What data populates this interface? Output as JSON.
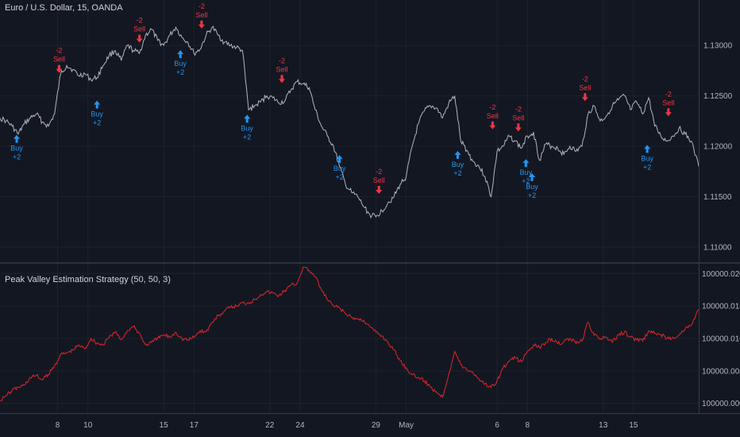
{
  "main_legend": "Euro / U.S. Dollar, 15, OANDA",
  "indicator_legend": "Peak Valley Estimation Strategy (50, 50, 3)",
  "colors": {
    "background": "#131722",
    "grid": "#1e222d",
    "axis_text": "#b2b5be",
    "price_line": "#b2b5be",
    "equity_line": "#e0262b",
    "buy": "#2196f3",
    "sell": "#f23645",
    "divider": "#363a45"
  },
  "chart_data": [
    {
      "type": "line",
      "title": "Euro / U.S. Dollar, 15, OANDA",
      "ylim": [
        1.1085,
        1.1345
      ],
      "y_ticks": [
        1.13,
        1.125,
        1.12,
        1.115,
        1.11
      ],
      "y_tick_labels": [
        "1.13000",
        "1.12500",
        "1.12000",
        "1.11500",
        "1.11000"
      ],
      "x_ticks": [
        {
          "label": "8",
          "day": 8
        },
        {
          "label": "10",
          "day": 10
        },
        {
          "label": "15",
          "day": 15
        },
        {
          "label": "17",
          "day": 17
        },
        {
          "label": "22",
          "day": 22
        },
        {
          "label": "24",
          "day": 24
        },
        {
          "label": "29",
          "day": 29
        },
        {
          "label": "May",
          "day": 31
        },
        {
          "label": "6",
          "day": 37
        },
        {
          "label": "8",
          "day": 39
        },
        {
          "label": "13",
          "day": 44
        },
        {
          "label": "15",
          "day": 46
        }
      ],
      "x_range": [
        4.2,
        50.3
      ],
      "series": [
        {
          "x": [
            4.2,
            4.6,
            5.0,
            5.4,
            5.8,
            6.2,
            6.6,
            7.0,
            7.4,
            7.8,
            8.2,
            8.6,
            9.0,
            9.4,
            9.8,
            10.2,
            10.6,
            11.0,
            11.4,
            11.8,
            12.2,
            12.6,
            13.0,
            13.4,
            13.8,
            14.2,
            14.6,
            15.0,
            15.4,
            15.8,
            16.2,
            16.6,
            17.0,
            17.4,
            17.8,
            18.2,
            18.6,
            19.0,
            19.4,
            19.8,
            20.2,
            20.6,
            21.0,
            21.4,
            21.8,
            22.2,
            22.6,
            23.0,
            23.4,
            23.8,
            24.2,
            24.6,
            25.0,
            25.4,
            25.8,
            26.2,
            26.6,
            27.0,
            27.4,
            27.8,
            28.2,
            28.6,
            29.0,
            29.4,
            29.8,
            30.2,
            30.6,
            31.0,
            31.4,
            31.8,
            32.2,
            32.6,
            33.0,
            33.4,
            33.8,
            34.2,
            34.6,
            35.0,
            35.4,
            35.8,
            36.2,
            36.6,
            37.0,
            37.4,
            37.8,
            38.2,
            38.6,
            39.0,
            39.4,
            39.8,
            40.2,
            40.6,
            41.0,
            41.4,
            41.8,
            42.2,
            42.6,
            43.0,
            43.4,
            43.8,
            44.2,
            44.6,
            45.0,
            45.4,
            45.8,
            46.2,
            46.6,
            47.0,
            47.4,
            47.8,
            48.2,
            48.6,
            49.0,
            49.4,
            49.8,
            50.3
          ],
          "y": [
            1.1228,
            1.1225,
            1.122,
            1.1212,
            1.1222,
            1.1228,
            1.1232,
            1.1224,
            1.122,
            1.1232,
            1.1272,
            1.128,
            1.1276,
            1.127,
            1.1272,
            1.1266,
            1.1268,
            1.128,
            1.129,
            1.1295,
            1.1285,
            1.13,
            1.1295,
            1.1292,
            1.131,
            1.1316,
            1.1305,
            1.13,
            1.131,
            1.1318,
            1.1308,
            1.1303,
            1.1292,
            1.1296,
            1.131,
            1.1318,
            1.131,
            1.1303,
            1.13,
            1.1298,
            1.1295,
            1.1236,
            1.124,
            1.1244,
            1.125,
            1.1248,
            1.1243,
            1.1245,
            1.1256,
            1.1264,
            1.1262,
            1.1258,
            1.1236,
            1.122,
            1.121,
            1.12,
            1.118,
            1.1162,
            1.1154,
            1.115,
            1.114,
            1.1132,
            1.113,
            1.1136,
            1.1144,
            1.115,
            1.1162,
            1.117,
            1.12,
            1.1222,
            1.1235,
            1.124,
            1.1238,
            1.1228,
            1.1242,
            1.125,
            1.1205,
            1.1196,
            1.1185,
            1.118,
            1.117,
            1.115,
            1.1195,
            1.12,
            1.121,
            1.1205,
            1.1198,
            1.121,
            1.1214,
            1.1186,
            1.1202,
            1.12,
            1.1198,
            1.1192,
            1.12,
            1.1195,
            1.12,
            1.1232,
            1.124,
            1.1225,
            1.123,
            1.124,
            1.1246,
            1.125,
            1.1236,
            1.1244,
            1.1232,
            1.1248,
            1.122,
            1.121,
            1.1205,
            1.121,
            1.1218,
            1.1212,
            1.1205,
            1.118
          ]
        }
      ],
      "signals": [
        {
          "type": "buy",
          "x": 5.3,
          "y": 1.1216,
          "label": "Buy",
          "qty": "+2"
        },
        {
          "type": "sell",
          "x": 8.1,
          "y": 1.1268,
          "label": "Sell",
          "qty": "-2"
        },
        {
          "type": "buy",
          "x": 10.6,
          "y": 1.125,
          "label": "Buy",
          "qty": "+2"
        },
        {
          "type": "sell",
          "x": 13.4,
          "y": 1.1298,
          "label": "Sell",
          "qty": "-2"
        },
        {
          "type": "buy",
          "x": 16.1,
          "y": 1.13,
          "label": "Buy",
          "qty": "+2"
        },
        {
          "type": "sell",
          "x": 17.5,
          "y": 1.1312,
          "label": "Sell",
          "qty": "-2"
        },
        {
          "type": "buy",
          "x": 20.5,
          "y": 1.1236,
          "label": "Buy",
          "qty": "+2"
        },
        {
          "type": "sell",
          "x": 22.8,
          "y": 1.1258,
          "label": "Sell",
          "qty": "-2"
        },
        {
          "type": "buy",
          "x": 26.6,
          "y": 1.1196,
          "label": "Buy",
          "qty": "+2"
        },
        {
          "type": "sell",
          "x": 29.2,
          "y": 1.1148,
          "label": "Sell",
          "qty": "-2"
        },
        {
          "type": "buy",
          "x": 34.4,
          "y": 1.12,
          "label": "Buy",
          "qty": "+2"
        },
        {
          "type": "sell",
          "x": 36.7,
          "y": 1.1212,
          "label": "Sell",
          "qty": "-2"
        },
        {
          "type": "sell",
          "x": 38.4,
          "y": 1.121,
          "label": "Sell",
          "qty": "-2"
        },
        {
          "type": "buy",
          "x": 38.9,
          "y": 1.1192,
          "label": "Buy",
          "qty": "+2"
        },
        {
          "type": "buy",
          "x": 39.3,
          "y": 1.1178,
          "label": "Buy",
          "qty": "+2"
        },
        {
          "type": "sell",
          "x": 42.8,
          "y": 1.124,
          "label": "Sell",
          "qty": "-2"
        },
        {
          "type": "buy",
          "x": 46.9,
          "y": 1.1206,
          "label": "Buy",
          "qty": "+2"
        },
        {
          "type": "sell",
          "x": 48.3,
          "y": 1.1225,
          "label": "Sell",
          "qty": "-2"
        }
      ]
    },
    {
      "type": "line",
      "title": "Peak Valley Estimation Strategy (50, 50, 3)",
      "ylim": [
        99999.9985,
        100000.0215
      ],
      "y_ticks": [
        100000.02,
        100000.015,
        100000.01,
        100000.005,
        100000.0
      ],
      "y_tick_labels": [
        "100000.02000",
        "100000.01500",
        "100000.01000",
        "100000.00500",
        "100000.00000"
      ],
      "x_range": [
        4.2,
        50.3
      ],
      "series": [
        {
          "x": [
            4.2,
            4.6,
            5.0,
            5.4,
            5.8,
            6.2,
            6.6,
            7.0,
            7.4,
            7.8,
            8.2,
            8.6,
            9.0,
            9.4,
            9.8,
            10.2,
            10.6,
            11.0,
            11.4,
            11.8,
            12.2,
            12.6,
            13.0,
            13.4,
            13.8,
            14.2,
            14.6,
            15.0,
            15.4,
            15.8,
            16.2,
            16.6,
            17.0,
            17.4,
            17.8,
            18.2,
            18.6,
            19.0,
            19.4,
            19.8,
            20.2,
            20.6,
            21.0,
            21.4,
            21.8,
            22.2,
            22.6,
            23.0,
            23.4,
            23.8,
            24.2,
            24.6,
            25.0,
            25.4,
            25.8,
            26.2,
            26.6,
            27.0,
            27.4,
            27.8,
            28.2,
            28.6,
            29.0,
            29.4,
            29.8,
            30.2,
            30.6,
            31.0,
            31.4,
            31.8,
            32.2,
            32.6,
            33.0,
            33.4,
            33.8,
            34.2,
            34.6,
            35.0,
            35.4,
            35.8,
            36.2,
            36.6,
            37.0,
            37.4,
            37.8,
            38.2,
            38.6,
            39.0,
            39.4,
            39.8,
            40.2,
            40.6,
            41.0,
            41.4,
            41.8,
            42.2,
            42.6,
            43.0,
            43.4,
            43.8,
            44.2,
            44.6,
            45.0,
            45.4,
            45.8,
            46.2,
            46.6,
            47.0,
            47.4,
            47.8,
            48.2,
            48.6,
            49.0,
            49.4,
            49.8,
            50.3
          ],
          "y": [
            100000.0005,
            100000.0012,
            100000.002,
            100000.0025,
            100000.0028,
            100000.004,
            100000.0043,
            100000.0036,
            100000.0045,
            100000.0058,
            100000.0075,
            100000.0078,
            100000.0082,
            100000.009,
            100000.0084,
            100000.01,
            100000.0093,
            100000.009,
            100000.0102,
            100000.011,
            100000.0098,
            100000.0112,
            100000.0118,
            100000.0108,
            100000.009,
            100000.0094,
            100000.01,
            100000.0106,
            100000.0102,
            100000.011,
            100000.01,
            100000.0098,
            100000.0102,
            100000.0112,
            100000.011,
            100000.0125,
            100000.0135,
            100000.0142,
            100000.0148,
            100000.015,
            100000.0155,
            100000.0155,
            100000.016,
            100000.0168,
            100000.0172,
            100000.017,
            100000.0166,
            100000.0174,
            100000.0182,
            100000.0185,
            100000.021,
            100000.0205,
            100000.0195,
            100000.0175,
            100000.016,
            100000.015,
            100000.0147,
            100000.0138,
            100000.0132,
            100000.013,
            100000.0128,
            100000.0118,
            100000.011,
            100000.0104,
            100000.0094,
            100000.0082,
            100000.0066,
            100000.0055,
            100000.0044,
            100000.004,
            100000.0035,
            100000.0025,
            100000.0018,
            100000.001,
            100000.0045,
            100000.008,
            100000.006,
            100000.0052,
            100000.0048,
            100000.0038,
            100000.003,
            100000.0025,
            100000.0035,
            100000.0055,
            100000.0065,
            100000.007,
            100000.0064,
            100000.008,
            100000.009,
            100000.0086,
            100000.0094,
            100000.01,
            100000.0092,
            100000.0095,
            100000.01,
            100000.0092,
            100000.0096,
            100000.0125,
            100000.0105,
            100000.01,
            100000.0102,
            100000.0094,
            100000.0105,
            100000.011,
            100000.0102,
            100000.0098,
            100000.0096,
            100000.0112,
            100000.0108,
            100000.0106,
            100000.01,
            100000.0102,
            100000.0105,
            100000.0115,
            100000.012,
            100000.0145
          ]
        }
      ]
    }
  ]
}
